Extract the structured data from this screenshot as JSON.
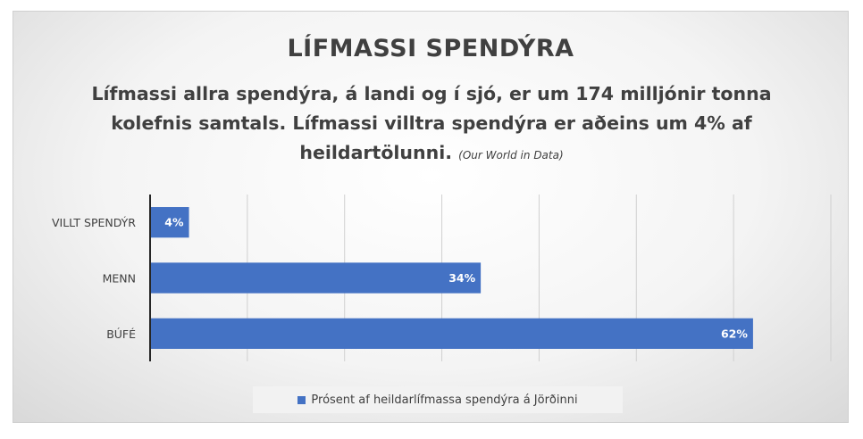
{
  "chart_data": {
    "type": "bar",
    "orientation": "horizontal",
    "title": "LÍFMASSI SPENDÝRA",
    "subtitle": "Lífmassi allra spendýra, á landi og í sjó, er um 174 milljónir tonna kolefnis samtals. Lífmassi villtra spendýra er aðeins um 4% af heildartölunni.",
    "source": "(Our World in Data)",
    "categories": [
      "VILLT SPENDÝR",
      "MENN",
      "BÚFÉ"
    ],
    "series": [
      {
        "name": "Prósent af heildarlífmassa spendýra á Jörðinni",
        "values": [
          4,
          34,
          62
        ],
        "labels": [
          "4%",
          "34%",
          "62%"
        ]
      }
    ],
    "xlim": [
      0,
      70
    ],
    "grid": true,
    "legend_position": "bottom",
    "bar_color": "#4472c4",
    "label_color": "#ffffff"
  }
}
